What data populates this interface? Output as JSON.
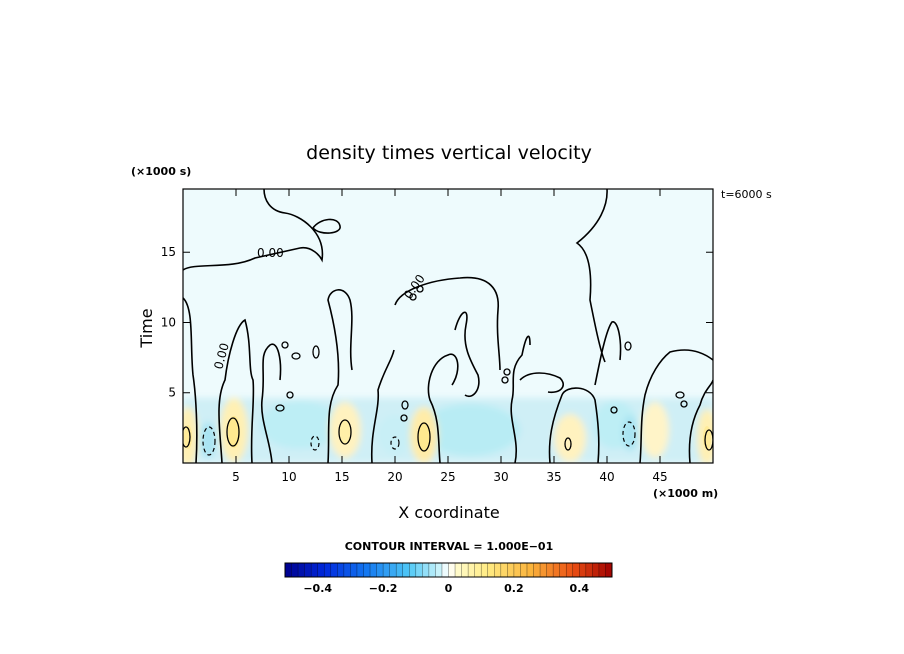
{
  "chart_data": {
    "type": "heatmap",
    "title": "density times vertical velocity",
    "xlabel": "X coordinate",
    "ylabel": "Time",
    "x_unit": "(×1000 m)",
    "y_unit": "(×1000 s)",
    "time_stamp": "t=6000 s",
    "contour_interval_text": "CONTOUR INTERVAL = 1.000E−01",
    "zero_contour_label": "0.00",
    "xlim": [
      0,
      50
    ],
    "ylim": [
      0,
      19.5
    ],
    "x_ticks": [
      5,
      10,
      15,
      20,
      25,
      30,
      35,
      40,
      45
    ],
    "y_ticks": [
      5,
      10,
      15
    ],
    "colorbar": {
      "range": [
        -0.5,
        0.5
      ],
      "tick_values": [
        -0.4,
        -0.2,
        0,
        0.2,
        0.4
      ],
      "tick_labels": [
        "−0.4",
        "−0.2",
        "0",
        "0.2",
        "0.4"
      ]
    },
    "features": [
      {
        "x": 0.5,
        "t": 2.0,
        "value": 0.15,
        "sign": "positive"
      },
      {
        "x": 2.5,
        "t": 1.5,
        "value": -0.12,
        "sign": "negative"
      },
      {
        "x": 4.7,
        "t": 2.2,
        "value": 0.2,
        "sign": "positive"
      },
      {
        "x": 8.5,
        "t": 2.0,
        "value": -0.07,
        "sign": "negative"
      },
      {
        "x": 12.2,
        "t": 1.4,
        "value": -0.1,
        "sign": "negative"
      },
      {
        "x": 15.2,
        "t": 2.2,
        "value": 0.16,
        "sign": "positive"
      },
      {
        "x": 19.8,
        "t": 1.6,
        "value": -0.1,
        "sign": "negative"
      },
      {
        "x": 22.6,
        "t": 2.0,
        "value": 0.2,
        "sign": "positive"
      },
      {
        "x": 27.0,
        "t": 2.2,
        "value": -0.1,
        "sign": "negative"
      },
      {
        "x": 32.0,
        "t": 2.0,
        "value": -0.07,
        "sign": "negative"
      },
      {
        "x": 36.4,
        "t": 1.5,
        "value": 0.14,
        "sign": "positive"
      },
      {
        "x": 42.0,
        "t": 2.0,
        "value": -0.12,
        "sign": "negative"
      },
      {
        "x": 44.5,
        "t": 2.0,
        "value": 0.08,
        "sign": "positive"
      },
      {
        "x": 49.0,
        "t": 2.0,
        "value": 0.15,
        "sign": "positive"
      }
    ]
  }
}
